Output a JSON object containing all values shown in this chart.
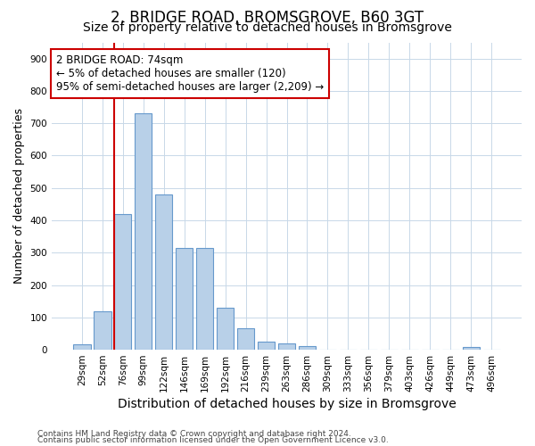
{
  "title1": "2, BRIDGE ROAD, BROMSGROVE, B60 3GT",
  "title2": "Size of property relative to detached houses in Bromsgrove",
  "xlabel": "Distribution of detached houses by size in Bromsgrove",
  "ylabel": "Number of detached properties",
  "categories": [
    "29sqm",
    "52sqm",
    "76sqm",
    "99sqm",
    "122sqm",
    "146sqm",
    "169sqm",
    "192sqm",
    "216sqm",
    "239sqm",
    "263sqm",
    "286sqm",
    "309sqm",
    "333sqm",
    "356sqm",
    "379sqm",
    "403sqm",
    "426sqm",
    "449sqm",
    "473sqm",
    "496sqm"
  ],
  "values": [
    18,
    120,
    420,
    730,
    480,
    315,
    315,
    130,
    65,
    25,
    20,
    10,
    0,
    0,
    0,
    0,
    0,
    0,
    0,
    8,
    0
  ],
  "bar_color": "#b8d0e8",
  "bar_edge_color": "#6699cc",
  "vline_x": 2.5,
  "vline_color": "#cc0000",
  "annotation_line1": "2 BRIDGE ROAD: 74sqm",
  "annotation_line2": "← 5% of detached houses are smaller (120)",
  "annotation_line3": "95% of semi-detached houses are larger (2,209) →",
  "annotation_box_color": "#ffffff",
  "annotation_box_edge": "#cc0000",
  "ylim": [
    0,
    950
  ],
  "yticks": [
    0,
    100,
    200,
    300,
    400,
    500,
    600,
    700,
    800,
    900
  ],
  "footer1": "Contains HM Land Registry data © Crown copyright and database right 2024.",
  "footer2": "Contains public sector information licensed under the Open Government Licence v3.0.",
  "bg_color": "#ffffff",
  "grid_color": "#c8d8e8",
  "title1_fontsize": 12,
  "title2_fontsize": 10,
  "tick_fontsize": 7.5,
  "ylabel_fontsize": 9,
  "xlabel_fontsize": 10
}
